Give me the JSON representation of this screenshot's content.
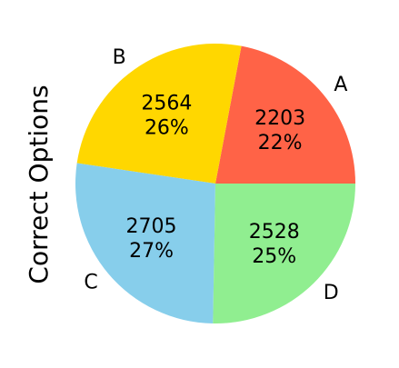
{
  "chart_data": {
    "type": "pie",
    "ylabel": "Correct Options",
    "slices": [
      {
        "label": "A",
        "value": 2203,
        "percent": "22%",
        "color": "#FF6347"
      },
      {
        "label": "B",
        "value": 2564,
        "percent": "26%",
        "color": "#FFD700"
      },
      {
        "label": "C",
        "value": 2705,
        "percent": "27%",
        "color": "#87CEEB"
      },
      {
        "label": "D",
        "value": 2528,
        "percent": "25%",
        "color": "#90EE90"
      }
    ]
  }
}
